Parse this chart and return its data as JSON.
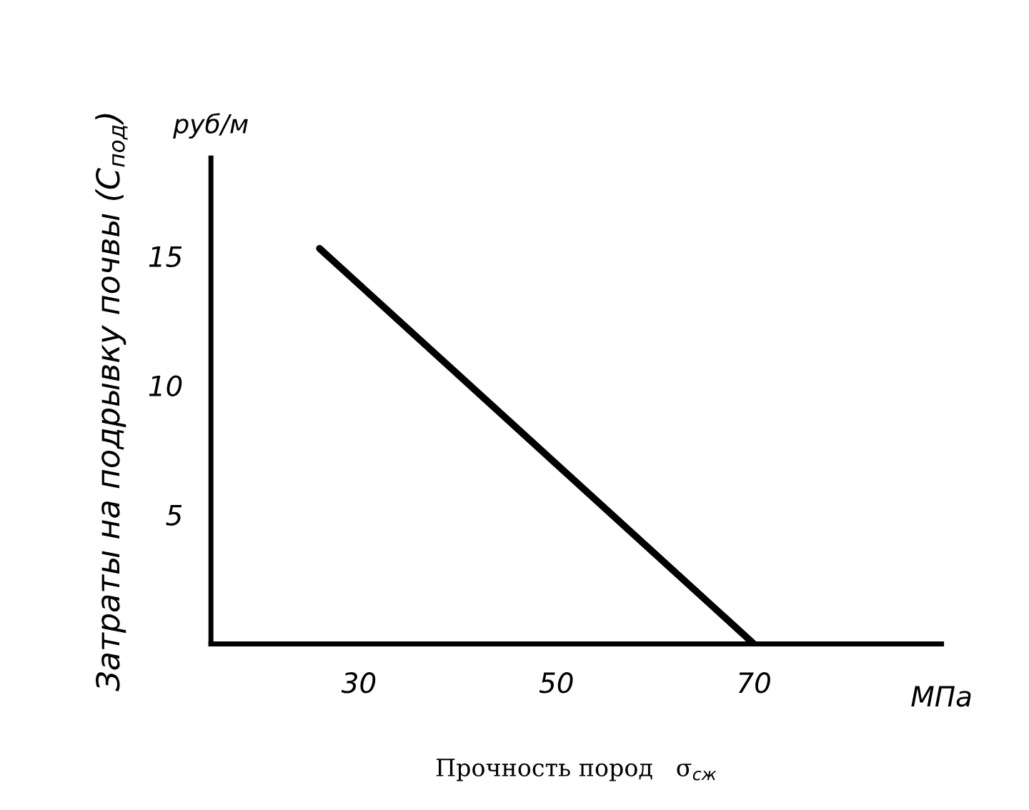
{
  "chart_data": {
    "type": "line",
    "ylabel": "Затраты на подрывку почвы (C$_{под}$)",
    "xlabel": "Прочность пород   σ$_{сж}$",
    "annotations": [
      "руб/м",
      "МПа"
    ],
    "x": [
      26,
      70
    ],
    "series": [
      {
        "color": "#000000",
        "values": [
          15.3,
          0
        ]
      }
    ],
    "xlim": [
      15,
      89
    ],
    "ylim": [
      0,
      18.8
    ],
    "xticks": [
      30,
      50,
      70
    ],
    "yticks": [
      5,
      10,
      15
    ],
    "grid": false,
    "legend": false,
    "marker": "none",
    "line_style": "solid"
  }
}
